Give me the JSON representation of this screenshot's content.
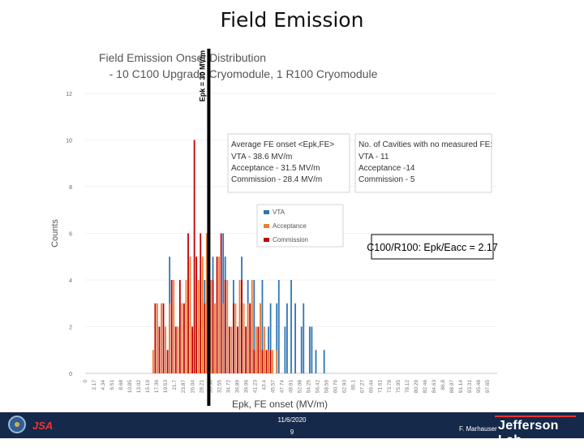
{
  "slide": {
    "title": "Field Emission"
  },
  "chart_data": {
    "type": "bar",
    "title": "Field Emission Onset Distribution",
    "subtitle": "- 10 C100 Upgrade Cryomodule, 1 R100 Cryomodule",
    "xlabel": "Epk, FE onset (MV/m)",
    "ylabel": "Counts",
    "ylim": [
      0,
      12
    ],
    "yticks": [
      0,
      2,
      4,
      6,
      8,
      10,
      12
    ],
    "xticks": [
      "0",
      "2.17",
      "4.34",
      "6.51",
      "8.68",
      "10.85",
      "13.02",
      "15.19",
      "17.36",
      "19.53",
      "21.7",
      "23.87",
      "26.04",
      "28.21",
      "30.38",
      "32.55",
      "34.72",
      "36.89",
      "39.06",
      "41.23",
      "43.4",
      "45.57",
      "47.74",
      "49.91",
      "52.08",
      "54.25",
      "56.42",
      "58.59",
      "60.76",
      "62.93",
      "65.1",
      "67.27",
      "69.44",
      "71.61",
      "73.78",
      "75.95",
      "78.12",
      "80.29",
      "82.46",
      "84.63",
      "86.8",
      "88.97",
      "91.14",
      "93.31",
      "95.48",
      "97.65"
    ],
    "xlim": [
      0,
      100
    ],
    "legend_position": "center-right",
    "series": [
      {
        "name": "VTA",
        "color": "#2e75b6",
        "x": [
          20.5,
          29.0,
          31.0,
          33.5,
          34.0,
          36.0,
          37.5,
          38.0,
          39.5,
          40.5,
          41.0,
          42.5,
          43.0,
          44.5,
          45.0,
          46.5,
          47.0,
          48.5,
          49.0,
          50.0,
          51.0,
          52.5,
          53.0,
          54.5,
          55.0,
          56.0,
          58.0
        ],
        "values": [
          5,
          4,
          5,
          6,
          5,
          4,
          3,
          5,
          4,
          3,
          4,
          3,
          4,
          2,
          3,
          3,
          4,
          2,
          3,
          4,
          3,
          2,
          3,
          2,
          2,
          1,
          1
        ]
      },
      {
        "name": "Acceptance",
        "color": "#ed7d31",
        "x": [
          16.5,
          17.5,
          18.5,
          19.5,
          20.5,
          21.5,
          22.5,
          23.5,
          24.5,
          25.5,
          26.5,
          27.5,
          28.5,
          29.5,
          30.5,
          31.5,
          32.5,
          33.5,
          34.5,
          35.5,
          36.5,
          37.5,
          38.5,
          39.5,
          40.5,
          41.5,
          42.5,
          43.5,
          44.5,
          45.5,
          46.5
        ],
        "values": [
          1,
          3,
          3,
          2,
          3,
          4,
          2,
          3,
          4,
          5,
          2,
          4,
          5,
          6,
          4,
          3,
          5,
          3,
          4,
          2,
          3,
          4,
          3,
          3,
          4,
          2,
          3,
          2,
          1,
          1,
          1
        ]
      },
      {
        "name": "Commission",
        "color": "#c00000",
        "x": [
          17.0,
          18.0,
          19.0,
          20.0,
          21.0,
          22.0,
          23.0,
          24.0,
          25.0,
          26.0,
          26.5,
          27.0,
          28.0,
          29.0,
          30.0,
          31.0,
          32.0,
          33.0,
          34.0,
          35.0,
          36.0,
          37.0,
          38.0,
          39.0,
          40.0,
          41.0,
          42.0,
          43.0,
          44.0,
          45.0
        ],
        "values": [
          3,
          2,
          3,
          1,
          4,
          2,
          4,
          3,
          6,
          2,
          10,
          5,
          6,
          3,
          2,
          4,
          5,
          6,
          4,
          2,
          3,
          2,
          4,
          2,
          3,
          1,
          2,
          1,
          1,
          1
        ]
      }
    ],
    "annotations": {
      "vertical_line_label": "Epk = 30 MV/m",
      "vertical_line_x": 30,
      "onset_box": {
        "heading": "Average FE onset <Epk,FE>",
        "lines": [
          "VTA - 38.6 MV/m",
          "Acceptance - 31.5 MV/m",
          "Commission - 28.4 MV/m"
        ]
      },
      "no_fe_box": {
        "heading": "No. of Cavities with no measured FE:",
        "lines": [
          "VTA - 11",
          "Acceptance -14",
          "Commission - 5"
        ]
      },
      "ratio_box": "C100/R100: Epk/Eacc = 2.17"
    }
  },
  "footer": {
    "date": "11/6/2020",
    "page": "9",
    "author": "F. Marhauser",
    "lab_name": "Jefferson Lab",
    "partner_logo_text": "JSA"
  }
}
